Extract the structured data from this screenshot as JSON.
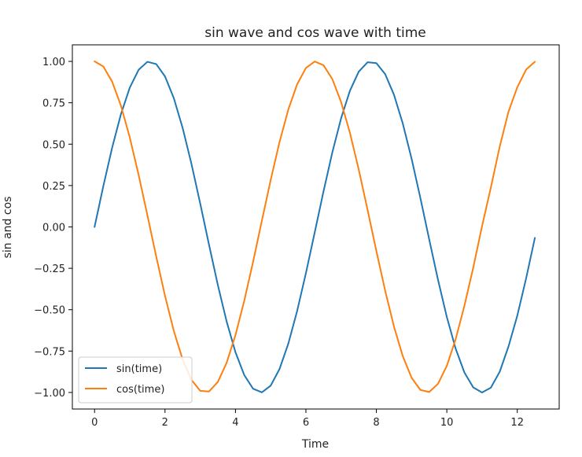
{
  "chart_data": {
    "type": "line",
    "title": "sin wave and cos wave with time",
    "xlabel": "Time",
    "ylabel": "sin and cos",
    "xlim": [
      -0.63,
      13.19
    ],
    "ylim": [
      -1.1,
      1.1
    ],
    "xticks": [
      0,
      2,
      4,
      6,
      8,
      10,
      12
    ],
    "xtick_labels": [
      "0",
      "2",
      "4",
      "6",
      "8",
      "10",
      "12"
    ],
    "yticks": [
      1.0,
      0.75,
      0.5,
      0.25,
      0.0,
      -0.25,
      -0.5,
      -0.75,
      -1.0
    ],
    "ytick_labels": [
      "1.00",
      "0.75",
      "0.50",
      "0.25",
      "0.00",
      "−0.25",
      "−0.50",
      "−0.75",
      "−1.00"
    ],
    "grid": false,
    "legend_position": "lower-left",
    "series": [
      {
        "name": "sin(time)",
        "color": "#1f77b4",
        "x": [
          0.0,
          0.25,
          0.5,
          0.75,
          1.0,
          1.25,
          1.5,
          1.75,
          2.0,
          2.25,
          2.5,
          2.75,
          3.0,
          3.25,
          3.5,
          3.75,
          4.0,
          4.25,
          4.5,
          4.75,
          5.0,
          5.25,
          5.5,
          5.75,
          6.0,
          6.25,
          6.5,
          6.75,
          7.0,
          7.25,
          7.5,
          7.75,
          8.0,
          8.25,
          8.5,
          8.75,
          9.0,
          9.25,
          9.5,
          9.75,
          10.0,
          10.25,
          10.5,
          10.75,
          11.0,
          11.25,
          11.5,
          11.75,
          12.0,
          12.25,
          12.5
        ],
        "y": [
          0.0,
          0.2474,
          0.4794,
          0.6816,
          0.8415,
          0.949,
          0.9975,
          0.984,
          0.9093,
          0.7781,
          0.5985,
          0.3817,
          0.1411,
          -0.1082,
          -0.3508,
          -0.5716,
          -0.7568,
          -0.895,
          -0.9775,
          -0.9993,
          -0.9589,
          -0.8589,
          -0.7055,
          -0.5083,
          -0.2794,
          -0.0332,
          0.2151,
          0.45,
          0.657,
          0.8231,
          0.938,
          0.9946,
          0.9894,
          0.9228,
          0.7985,
          0.6247,
          0.4121,
          0.1743,
          -0.0752,
          -0.3195,
          -0.544,
          -0.7346,
          -0.8797,
          -0.9693,
          -1.0,
          -0.9713,
          -0.8755,
          -0.7228,
          -0.5366,
          -0.3115,
          -0.0663
        ]
      },
      {
        "name": "cos(time)",
        "color": "#ff7f0e",
        "x": [
          0.0,
          0.25,
          0.5,
          0.75,
          1.0,
          1.25,
          1.5,
          1.75,
          2.0,
          2.25,
          2.5,
          2.75,
          3.0,
          3.25,
          3.5,
          3.75,
          4.0,
          4.25,
          4.5,
          4.75,
          5.0,
          5.25,
          5.5,
          5.75,
          6.0,
          6.25,
          6.5,
          6.75,
          7.0,
          7.25,
          7.5,
          7.75,
          8.0,
          8.25,
          8.5,
          8.75,
          9.0,
          9.25,
          9.5,
          9.75,
          10.0,
          10.25,
          10.5,
          10.75,
          11.0,
          11.25,
          11.5,
          11.75,
          12.0,
          12.25,
          12.5
        ],
        "y": [
          1.0,
          0.9689,
          0.8776,
          0.7317,
          0.5403,
          0.3153,
          0.0707,
          -0.1782,
          -0.4161,
          -0.6282,
          -0.8011,
          -0.9243,
          -0.99,
          -0.9941,
          -0.9365,
          -0.8206,
          -0.6536,
          -0.4461,
          -0.2108,
          0.0376,
          0.2837,
          0.5121,
          0.7087,
          0.8612,
          0.9602,
          0.9994,
          0.9766,
          0.893,
          0.7539,
          0.5679,
          0.3466,
          0.1034,
          -0.1455,
          -0.3853,
          -0.602,
          -0.7807,
          -0.9111,
          -0.9847,
          -0.9972,
          -0.9476,
          -0.8391,
          -0.6788,
          -0.4755,
          -0.2458,
          0.0044,
          0.2381,
          0.4833,
          0.6953,
          0.8439,
          0.9502,
          0.9978
        ]
      }
    ]
  }
}
